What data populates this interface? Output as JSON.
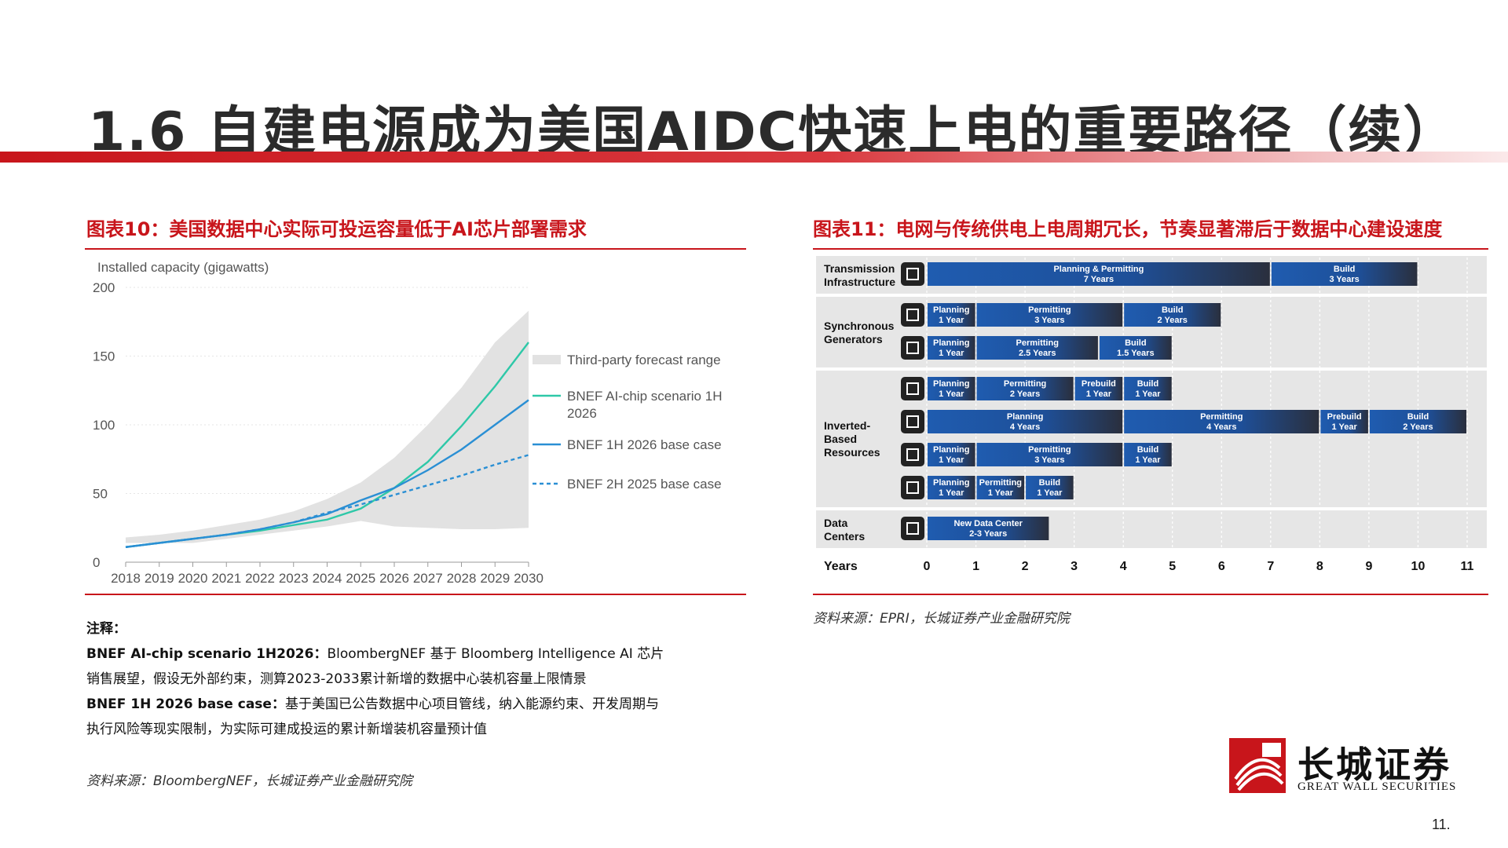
{
  "header": {
    "title": "1.6 自建电源成为美国AIDC快速上电的重要路径（续）"
  },
  "left_panel": {
    "figure_title": "图表10：美国数据中心实际可投运容量低于AI芯片部署需求",
    "notes_heading": "注释：",
    "note1_label": "BNEF AI-chip scenario 1H2026：",
    "note1_text": "BloombergNEF 基于 Bloomberg Intelligence AI 芯片销售展望，假设无外部约束，测算2023-2033累计新增的数据中心装机容量上限情景",
    "note2_label": "BNEF 1H 2026 base case：",
    "note2_text": "基于美国已公告数据中心项目管线，纳入能源约束、开发周期与执行风险等现实限制，为实际可建成投运的累计新增装机容量预计值",
    "source": "资料来源：BloombergNEF，长城证券产业金融研究院"
  },
  "right_panel": {
    "figure_title": "图表11：电网与传统供电上电周期冗长，节奏显著滞后于数据中心建设速度",
    "source": "资料来源：EPRI，长城证券产业金融研究院"
  },
  "chart_data": [
    {
      "type": "line",
      "ylabel": "Installed capacity (gigawatts)",
      "x": [
        2018,
        2019,
        2020,
        2021,
        2022,
        2023,
        2024,
        2025,
        2026,
        2027,
        2028,
        2029,
        2030
      ],
      "xticks": [
        "2018",
        "2019",
        "2020",
        "2021",
        "2022",
        "2023",
        "2024",
        "2025",
        "2026",
        "2027",
        "2028",
        "2029",
        "2030"
      ],
      "yticks": [
        "0",
        "50",
        "100",
        "150",
        "200"
      ],
      "ylim": [
        0,
        200
      ],
      "legend_position": "right",
      "range": {
        "name": "Third-party forecast range",
        "color": "#e2e2e2",
        "upper": [
          18,
          20,
          23,
          27,
          31,
          37,
          46,
          58,
          76,
          100,
          127,
          160,
          183
        ],
        "lower": [
          14,
          14,
          14,
          17,
          20,
          23,
          26,
          30,
          26,
          25,
          24,
          24,
          25
        ]
      },
      "series": [
        {
          "name": "BNEF AI-chip scenario 1H 2026",
          "color": "#2ec8a8",
          "dash": false,
          "values": [
            11,
            14,
            17,
            20,
            23,
            27,
            31,
            39,
            54,
            73,
            99,
            128,
            160
          ]
        },
        {
          "name": "BNEF 1H 2026 base case",
          "color": "#2a8fd4",
          "dash": false,
          "values": [
            11,
            14,
            17,
            20,
            24,
            29,
            35,
            45,
            54,
            67,
            82,
            100,
            118
          ]
        },
        {
          "name": "BNEF 2H 2025 base case",
          "color": "#2a8fd4",
          "dash": true,
          "values": [
            11,
            14,
            17,
            20,
            24,
            29,
            36,
            42,
            49,
            56,
            63,
            71,
            78
          ]
        }
      ]
    },
    {
      "type": "bar",
      "subtype": "gantt",
      "xlabel": "Years",
      "xlim": [
        0,
        11
      ],
      "xticks": [
        "0",
        "1",
        "2",
        "3",
        "4",
        "5",
        "6",
        "7",
        "8",
        "9",
        "10",
        "11"
      ],
      "groups": [
        {
          "name_lines": [
            "Transmission",
            "Infrastructure"
          ],
          "rows": [
            {
              "icon": "transmission-tower-icon",
              "phases": [
                {
                  "label1": "Planning & Permitting",
                  "label2": "7 Years",
                  "start": 0,
                  "end": 7
                },
                {
                  "label1": "Build",
                  "label2": "3 Years",
                  "start": 7,
                  "end": 10
                }
              ]
            }
          ]
        },
        {
          "name_lines": [
            "Synchronous",
            "Generators"
          ],
          "rows": [
            {
              "icon": "nuclear-plant-icon",
              "phases": [
                {
                  "label1": "Planning",
                  "label2": "1 Year",
                  "start": 0,
                  "end": 1
                },
                {
                  "label1": "Permitting",
                  "label2": "3 Years",
                  "start": 1,
                  "end": 4
                },
                {
                  "label1": "Build",
                  "label2": "2 Years",
                  "start": 4,
                  "end": 6
                }
              ]
            },
            {
              "icon": "gas-plant-icon",
              "phases": [
                {
                  "label1": "Planning",
                  "label2": "1 Year",
                  "start": 0,
                  "end": 1
                },
                {
                  "label1": "Permitting",
                  "label2": "2.5 Years",
                  "start": 1,
                  "end": 3.5
                },
                {
                  "label1": "Build",
                  "label2": "1.5 Years",
                  "start": 3.5,
                  "end": 5
                }
              ]
            }
          ]
        },
        {
          "name_lines": [
            "Inverted-",
            "Based",
            "Resources"
          ],
          "rows": [
            {
              "icon": "wind-turbine-icon",
              "phases": [
                {
                  "label1": "Planning",
                  "label2": "1 Year",
                  "start": 0,
                  "end": 1
                },
                {
                  "label1": "Permitting",
                  "label2": "2 Years",
                  "start": 1,
                  "end": 3
                },
                {
                  "label1": "Prebuild",
                  "label2": "1 Year",
                  "start": 3,
                  "end": 4
                },
                {
                  "label1": "Build",
                  "label2": "1 Year",
                  "start": 4,
                  "end": 5
                }
              ]
            },
            {
              "icon": "offshore-wind-icon",
              "phases": [
                {
                  "label1": "Planning",
                  "label2": "4 Years",
                  "start": 0,
                  "end": 4
                },
                {
                  "label1": "Permitting",
                  "label2": "4 Years",
                  "start": 4,
                  "end": 8
                },
                {
                  "label1": "Prebuild",
                  "label2": "1 Year",
                  "start": 8,
                  "end": 9
                },
                {
                  "label1": "Build",
                  "label2": "2 Years",
                  "start": 9,
                  "end": 11
                }
              ]
            },
            {
              "icon": "solar-panel-icon",
              "phases": [
                {
                  "label1": "Planning",
                  "label2": "1 Year",
                  "start": 0,
                  "end": 1
                },
                {
                  "label1": "Permitting",
                  "label2": "3 Years",
                  "start": 1,
                  "end": 4
                },
                {
                  "label1": "Build",
                  "label2": "1 Year",
                  "start": 4,
                  "end": 5
                }
              ]
            },
            {
              "icon": "battery-storage-icon",
              "phases": [
                {
                  "label1": "Planning",
                  "label2": "1 Year",
                  "start": 0,
                  "end": 1
                },
                {
                  "label1": "Permitting",
                  "label2": "1 Year",
                  "start": 1,
                  "end": 2
                },
                {
                  "label1": "Build",
                  "label2": "1 Year",
                  "start": 2,
                  "end": 3
                }
              ]
            }
          ]
        },
        {
          "name_lines": [
            "Data",
            "Centers"
          ],
          "rows": [
            {
              "icon": "server-rack-icon",
              "phases": [
                {
                  "label1": "New Data Center",
                  "label2": "2-3 Years",
                  "start": 0,
                  "end": 2.5
                }
              ]
            }
          ]
        }
      ]
    }
  ],
  "branding": {
    "logo_cn": "长城证券",
    "logo_en": "GREAT WALL SECURITIES",
    "page_number": "11.",
    "accent": "#c8151b"
  }
}
